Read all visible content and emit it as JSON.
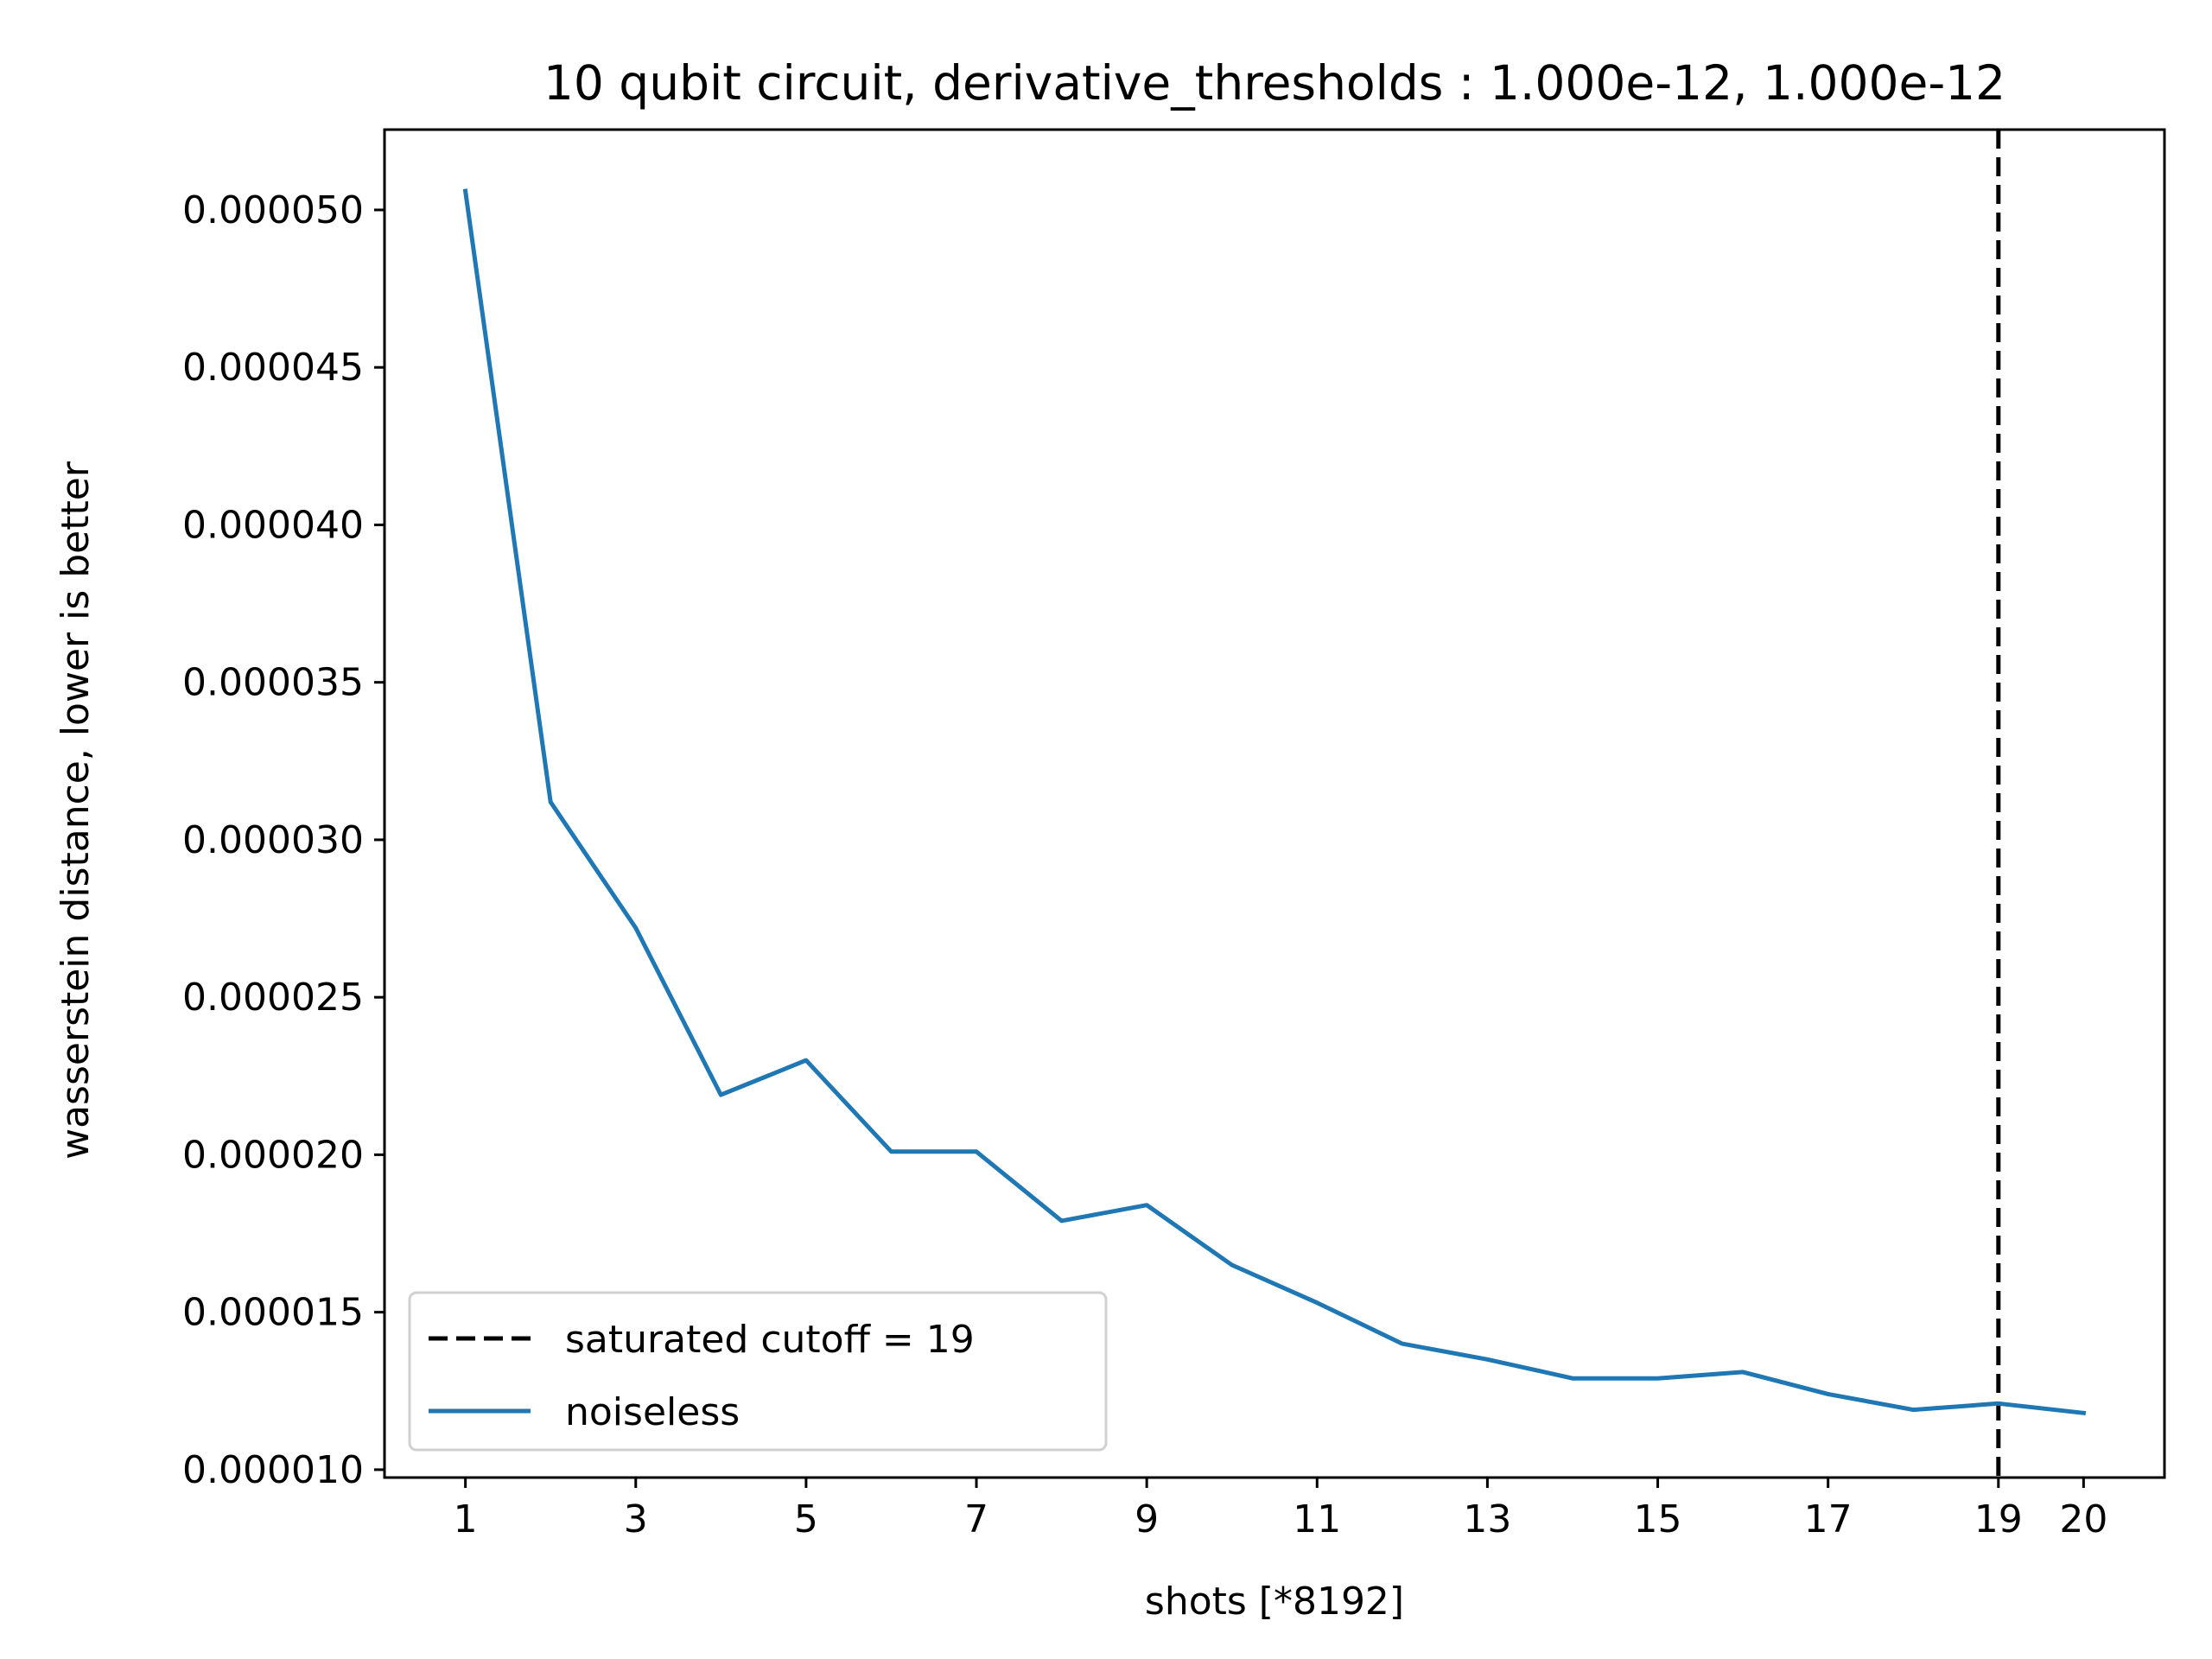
{
  "chart_data": {
    "type": "line",
    "title": "10 qubit circuit, derivative_thresholds : 1.000e-12, 1.000e-12",
    "xlabel": "shots [*8192]",
    "ylabel": "wasserstein distance, lower is better",
    "xlim": [
      0.05,
      20.95
    ],
    "ylim": [
      9.75e-06,
      5.255e-05
    ],
    "x_ticks": [
      1,
      3,
      5,
      7,
      9,
      11,
      13,
      15,
      17,
      19,
      20
    ],
    "x_tick_labels": [
      "1",
      "3",
      "5",
      "7",
      "9",
      "11",
      "13",
      "15",
      "17",
      "19",
      "20"
    ],
    "y_ticks": [
      1e-05,
      1.5e-05,
      2e-05,
      2.5e-05,
      3e-05,
      3.5e-05,
      4e-05,
      4.5e-05,
      5e-05
    ],
    "y_tick_labels": [
      "0.000010",
      "0.000015",
      "0.000020",
      "0.000025",
      "0.000030",
      "0.000035",
      "0.000040",
      "0.000045",
      "0.000050"
    ],
    "grid": false,
    "legend_position": "lower-left",
    "series": [
      {
        "name": "noiseless",
        "color": "#1f77b4",
        "style": "solid",
        "x": [
          1,
          2,
          3,
          4,
          5,
          6,
          7,
          8,
          9,
          10,
          11,
          12,
          13,
          14,
          15,
          16,
          17,
          18,
          19,
          20
        ],
        "y": [
          5.06e-05,
          3.12e-05,
          2.72e-05,
          2.19e-05,
          2.3e-05,
          2.01e-05,
          2.01e-05,
          1.79e-05,
          1.84e-05,
          1.65e-05,
          1.53e-05,
          1.4e-05,
          1.35e-05,
          1.29e-05,
          1.29e-05,
          1.31e-05,
          1.24e-05,
          1.19e-05,
          1.21e-05,
          1.18e-05
        ]
      }
    ],
    "reference_lines": [
      {
        "name": "saturated cutoff = 19",
        "orientation": "vertical",
        "x": 19,
        "color": "#000000",
        "style": "dashed"
      }
    ]
  }
}
